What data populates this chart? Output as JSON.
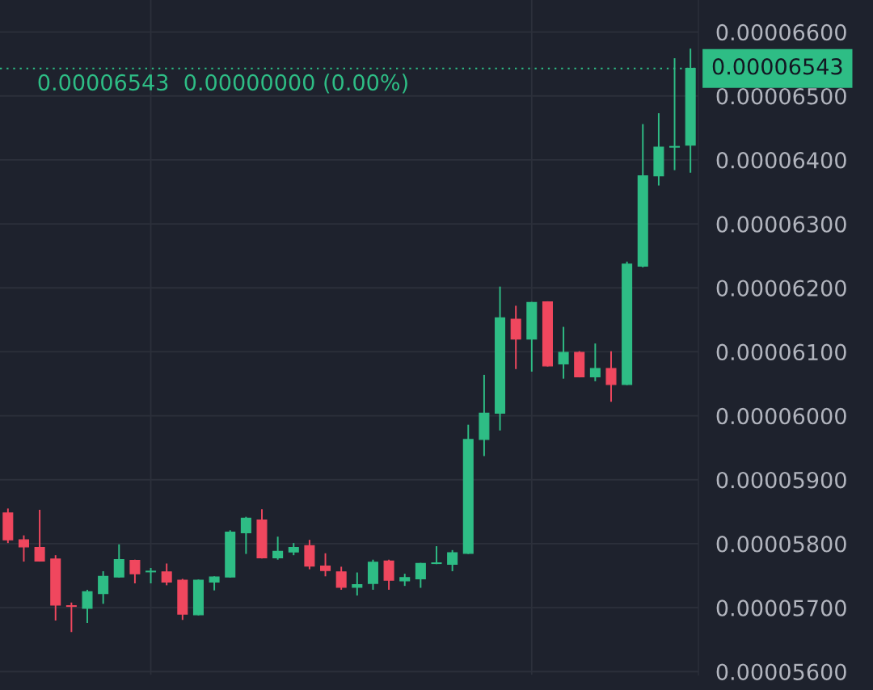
{
  "chart_data": {
    "type": "candlestick",
    "categories": [
      null,
      null,
      null,
      null,
      null,
      null,
      null,
      null,
      null,
      null,
      null,
      null,
      null,
      null,
      null,
      null,
      null,
      null,
      null,
      null,
      null,
      null,
      null,
      null,
      null,
      null,
      null,
      null,
      null,
      null,
      null,
      null,
      null,
      null,
      null,
      null,
      null,
      null,
      null,
      null,
      null,
      null,
      null,
      null
    ],
    "ohlc": [
      [
        5.848e-05,
        5.855e-05,
        5.801e-05,
        5.806e-05
      ],
      [
        5.806e-05,
        5.813e-05,
        5.772e-05,
        5.795e-05
      ],
      [
        5.794e-05,
        5.853e-05,
        5.772e-05,
        5.773e-05
      ],
      [
        5.776e-05,
        5.782e-05,
        5.68e-05,
        5.704e-05
      ],
      [
        5.703e-05,
        5.708e-05,
        5.662e-05,
        5.702e-05
      ],
      [
        5.699e-05,
        5.728e-05,
        5.676e-05,
        5.725e-05
      ],
      [
        5.722e-05,
        5.757e-05,
        5.706e-05,
        5.749e-05
      ],
      [
        5.748e-05,
        5.799e-05,
        5.747e-05,
        5.775e-05
      ],
      [
        5.774e-05,
        5.775e-05,
        5.738e-05,
        5.753e-05
      ],
      [
        5.756e-05,
        5.762e-05,
        5.738e-05,
        5.757e-05
      ],
      [
        5.756e-05,
        5.769e-05,
        5.735e-05,
        5.74e-05
      ],
      [
        5.743e-05,
        5.745e-05,
        5.681e-05,
        5.69e-05
      ],
      [
        5.689e-05,
        5.744e-05,
        5.688e-05,
        5.743e-05
      ],
      [
        5.74e-05,
        5.749e-05,
        5.727e-05,
        5.748e-05
      ],
      [
        5.748e-05,
        5.821e-05,
        5.747e-05,
        5.818e-05
      ],
      [
        5.817e-05,
        5.842e-05,
        5.784e-05,
        5.84e-05
      ],
      [
        5.837e-05,
        5.854e-05,
        5.777e-05,
        5.778e-05
      ],
      [
        5.778e-05,
        5.811e-05,
        5.775e-05,
        5.788e-05
      ],
      [
        5.787e-05,
        5.801e-05,
        5.782e-05,
        5.794e-05
      ],
      [
        5.797e-05,
        5.806e-05,
        5.76e-05,
        5.765e-05
      ],
      [
        5.765e-05,
        5.785e-05,
        5.749e-05,
        5.758e-05
      ],
      [
        5.756e-05,
        5.764e-05,
        5.728e-05,
        5.732e-05
      ],
      [
        5.732e-05,
        5.755e-05,
        5.719e-05,
        5.736e-05
      ],
      [
        5.738e-05,
        5.775e-05,
        5.728e-05,
        5.771e-05
      ],
      [
        5.773e-05,
        5.775e-05,
        5.728e-05,
        5.743e-05
      ],
      [
        5.742e-05,
        5.753e-05,
        5.734e-05,
        5.747e-05
      ],
      [
        5.745e-05,
        5.77e-05,
        5.731e-05,
        5.769e-05
      ],
      [
        5.769e-05,
        5.796e-05,
        5.768e-05,
        5.77e-05
      ],
      [
        5.768e-05,
        5.79e-05,
        5.757e-05,
        5.786e-05
      ],
      [
        5.785e-05,
        5.986e-05,
        5.784e-05,
        5.963e-05
      ],
      [
        5.963e-05,
        6.064e-05,
        5.937e-05,
        6.004e-05
      ],
      [
        6.004e-05,
        6.202e-05,
        5.977e-05,
        6.153e-05
      ],
      [
        6.151e-05,
        6.172e-05,
        6.073e-05,
        6.12e-05
      ],
      [
        6.12e-05,
        6.178e-05,
        6.069e-05,
        6.177e-05
      ],
      [
        6.178e-05,
        6.179e-05,
        6.077e-05,
        6.078e-05
      ],
      [
        6.081e-05,
        6.139e-05,
        6.058e-05,
        6.099e-05
      ],
      [
        6.099e-05,
        6.101e-05,
        6.06e-05,
        6.061e-05
      ],
      [
        6.061e-05,
        6.113e-05,
        6.054e-05,
        6.074e-05
      ],
      [
        6.074e-05,
        6.101e-05,
        6.022e-05,
        6.049e-05
      ],
      [
        6.049e-05,
        6.241e-05,
        6.048e-05,
        6.237e-05
      ],
      [
        6.234e-05,
        6.456e-05,
        6.232e-05,
        6.375e-05
      ],
      [
        6.375e-05,
        6.473e-05,
        6.36e-05,
        6.42e-05
      ],
      [
        6.42e-05,
        6.559e-05,
        6.384e-05,
        6.421e-05
      ],
      [
        6.423e-05,
        6.574e-05,
        6.38e-05,
        6.543e-05
      ]
    ],
    "colors": [
      "#f0475e",
      "#f0475e",
      "#f0475e",
      "#f0475e",
      "#f0475e",
      "#2ebd85",
      "#2ebd85",
      "#2ebd85",
      "#f0475e",
      "#2ebd85",
      "#f0475e",
      "#f0475e",
      "#2ebd85",
      "#2ebd85",
      "#2ebd85",
      "#2ebd85",
      "#f0475e",
      "#2ebd85",
      "#2ebd85",
      "#f0475e",
      "#f0475e",
      "#f0475e",
      "#2ebd85",
      "#2ebd85",
      "#f0475e",
      "#2ebd85",
      "#2ebd85",
      "#2ebd85",
      "#2ebd85",
      "#2ebd85",
      "#2ebd85",
      "#2ebd85",
      "#f0475e",
      "#2ebd85",
      "#f0475e",
      "#2ebd85",
      "#f0475e",
      "#2ebd85",
      "#f0475e",
      "#2ebd85",
      "#2ebd85",
      "#2ebd85",
      "#2ebd85",
      "#2ebd85"
    ],
    "ylim": [
      5.595e-05,
      6.65e-05
    ],
    "yticks": [
      {
        "value": 5.6e-05,
        "label": "0.00005600"
      },
      {
        "value": 5.7e-05,
        "label": "0.00005700"
      },
      {
        "value": 5.8e-05,
        "label": "0.00005800"
      },
      {
        "value": 5.9e-05,
        "label": "0.00005900"
      },
      {
        "value": 6e-05,
        "label": "0.00006000"
      },
      {
        "value": 6.1e-05,
        "label": "0.00006100"
      },
      {
        "value": 6.2e-05,
        "label": "0.00006200"
      },
      {
        "value": 6.3e-05,
        "label": "0.00006300"
      },
      {
        "value": 6.4e-05,
        "label": "0.00006400"
      },
      {
        "value": 6.5e-05,
        "label": "0.00006500"
      },
      {
        "value": 6.6e-05,
        "label": "0.00006600"
      }
    ],
    "ref_lines": [
      {
        "axis": "y",
        "value": 6.543e-05,
        "label": "0.00006543",
        "color": "#2ebd85",
        "line_style": "dotted"
      }
    ],
    "annotations": [
      "0.00006543  0.00000000 (0.00%)"
    ],
    "grid": "y",
    "tick_labels": "y"
  }
}
